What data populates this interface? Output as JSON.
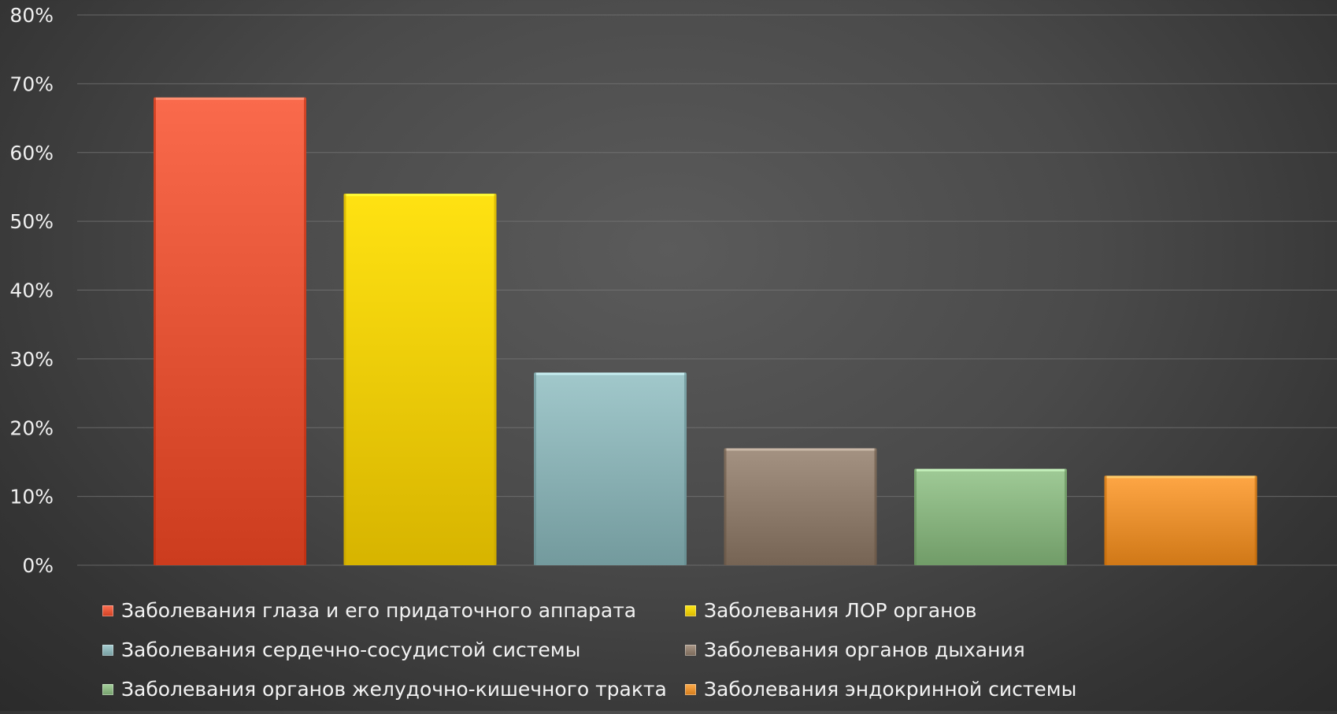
{
  "chart_data": {
    "type": "bar",
    "title": "",
    "xlabel": "",
    "ylabel": "",
    "ylim": [
      0,
      80
    ],
    "y_ticks": [
      "0%",
      "10%",
      "20%",
      "30%",
      "40%",
      "50%",
      "60%",
      "70%",
      "80%"
    ],
    "grid": true,
    "legend_position": "bottom",
    "series": [
      {
        "name": "Заболевания глаза и его придаточного аппарата",
        "value": 68,
        "color": "#e8583a"
      },
      {
        "name": "Заболевания ЛОР органов",
        "value": 54,
        "color": "#f3d000"
      },
      {
        "name": "Заболевания сердечно-сосудистой системы",
        "value": 28,
        "color": "#8fb6b9"
      },
      {
        "name": "Заболевания органов дыхания",
        "value": 17,
        "color": "#928070"
      },
      {
        "name": "Заболевания органов желудочно-кишечного тракта",
        "value": 14,
        "color": "#8db884"
      },
      {
        "name": "Заболевания эндокринной системы",
        "value": 13,
        "color": "#ec9433"
      }
    ]
  }
}
